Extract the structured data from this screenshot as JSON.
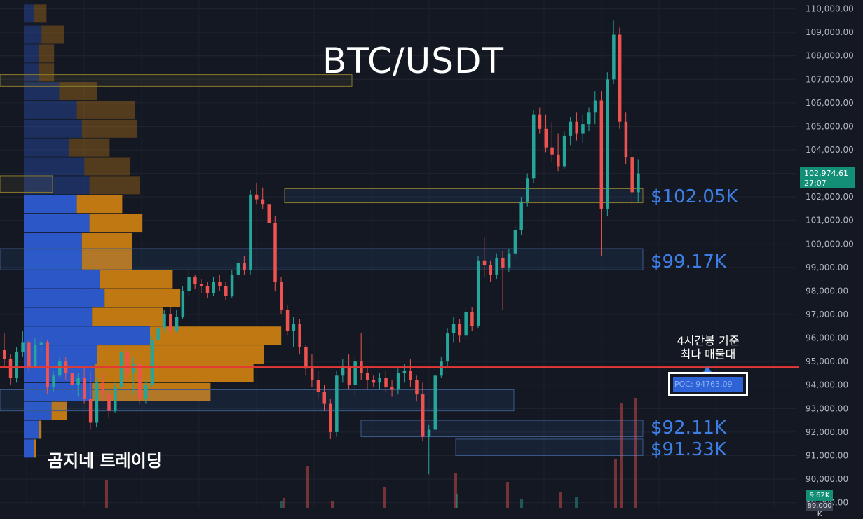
{
  "title": "BTC/USDT",
  "watermark": "곰지네 트레이딩",
  "chart_data": {
    "type": "candlestick",
    "title": "BTC/USDT",
    "y_axis": {
      "ticks": [
        "110,000.00",
        "109,000.00",
        "108,000.00",
        "107,000.00",
        "106,000.00",
        "105,000.00",
        "104,000.00",
        "103,000.00",
        "102,000.00",
        "101,000.00",
        "100,000.00",
        "99,000.00",
        "98,000.00",
        "97,000.00",
        "96,000.00",
        "95,000.00",
        "94,000.00",
        "93,000.00",
        "92,000.00",
        "91,000.00",
        "90,000.00",
        "89,000.00"
      ],
      "range": [
        89000,
        110000
      ]
    },
    "candles": [
      [
        95500,
        96200,
        94700,
        95100
      ],
      [
        95100,
        95300,
        94000,
        94300
      ],
      [
        94300,
        95600,
        94100,
        95400
      ],
      [
        95400,
        96300,
        95200,
        95800
      ],
      [
        95800,
        95900,
        94600,
        94800
      ],
      [
        94800,
        96000,
        94700,
        95700
      ],
      [
        95700,
        96200,
        95400,
        95800
      ],
      [
        95800,
        95900,
        93600,
        93900
      ],
      [
        93900,
        94600,
        93700,
        94400
      ],
      [
        94400,
        95200,
        94300,
        95000
      ],
      [
        95000,
        95200,
        94200,
        94500
      ],
      [
        94500,
        94800,
        93600,
        94000
      ],
      [
        94000,
        94500,
        93500,
        94300
      ],
      [
        94300,
        94700,
        93200,
        93400
      ],
      [
        93400,
        94600,
        92100,
        92400
      ],
      [
        92400,
        94300,
        92200,
        94100
      ],
      [
        94100,
        94500,
        93300,
        93600
      ],
      [
        93600,
        93800,
        92600,
        92900
      ],
      [
        92900,
        94100,
        92800,
        93900
      ],
      [
        93900,
        95600,
        93700,
        95400
      ],
      [
        95400,
        95500,
        94200,
        94500
      ],
      [
        94500,
        95200,
        93600,
        94900
      ],
      [
        94900,
        95100,
        93200,
        93400
      ],
      [
        93400,
        94200,
        93200,
        94000
      ],
      [
        94000,
        96100,
        93900,
        95900
      ],
      [
        95900,
        96700,
        95700,
        96400
      ],
      [
        96400,
        97200,
        96200,
        97000
      ],
      [
        97000,
        97300,
        96100,
        96300
      ],
      [
        96300,
        97200,
        96200,
        96900
      ],
      [
        96900,
        98200,
        96800,
        98000
      ],
      [
        98000,
        98900,
        97800,
        98600
      ],
      [
        98600,
        98700,
        98100,
        98300
      ],
      [
        98300,
        98500,
        97900,
        98200
      ],
      [
        98200,
        98400,
        97700,
        97900
      ],
      [
        97900,
        98600,
        97800,
        98400
      ],
      [
        98400,
        98700,
        98000,
        98200
      ],
      [
        98200,
        98400,
        97600,
        97800
      ],
      [
        97800,
        98900,
        97700,
        98700
      ],
      [
        98700,
        99400,
        98500,
        99200
      ],
      [
        99200,
        99500,
        98700,
        98900
      ],
      [
        98900,
        102300,
        98700,
        102100
      ],
      [
        102100,
        102600,
        101700,
        101900
      ],
      [
        101900,
        102400,
        101500,
        101700
      ],
      [
        101700,
        102000,
        100600,
        100900
      ],
      [
        100900,
        101200,
        98000,
        98400
      ],
      [
        98400,
        98600,
        97000,
        97200
      ],
      [
        97200,
        97400,
        96100,
        96300
      ],
      [
        96300,
        96900,
        95600,
        96600
      ],
      [
        96600,
        96800,
        95300,
        95600
      ],
      [
        95600,
        95700,
        94400,
        94700
      ],
      [
        94700,
        95300,
        93900,
        94200
      ],
      [
        94200,
        94600,
        93400,
        93700
      ],
      [
        93700,
        94000,
        92900,
        93200
      ],
      [
        93200,
        93400,
        91700,
        92000
      ],
      [
        92000,
        94600,
        91800,
        94400
      ],
      [
        94400,
        95100,
        94100,
        94800
      ],
      [
        94800,
        95300,
        93800,
        94000
      ],
      [
        94000,
        95200,
        93500,
        95000
      ],
      [
        95000,
        96200,
        94200,
        94500
      ],
      [
        94500,
        94800,
        93800,
        94200
      ],
      [
        94200,
        94400,
        93900,
        94100
      ],
      [
        94100,
        94500,
        93800,
        94300
      ],
      [
        94300,
        94600,
        93700,
        93900
      ],
      [
        93900,
        94200,
        93500,
        93800
      ],
      [
        93800,
        94700,
        93600,
        94500
      ],
      [
        94500,
        94900,
        94100,
        94600
      ],
      [
        94600,
        95100,
        93900,
        94200
      ],
      [
        94200,
        94400,
        93300,
        93600
      ],
      [
        93600,
        94100,
        91600,
        91800
      ],
      [
        91800,
        92300,
        90200,
        92100
      ],
      [
        92100,
        94500,
        92000,
        94400
      ],
      [
        94400,
        95200,
        94300,
        95000
      ],
      [
        95000,
        96400,
        94800,
        96200
      ],
      [
        96200,
        96900,
        95800,
        96600
      ],
      [
        96600,
        96800,
        95800,
        96100
      ],
      [
        96100,
        97300,
        95900,
        97100
      ],
      [
        97100,
        97300,
        96300,
        96500
      ],
      [
        96500,
        99500,
        96400,
        99300
      ],
      [
        99300,
        100300,
        98600,
        99100
      ],
      [
        99100,
        99300,
        98400,
        98700
      ],
      [
        98700,
        99600,
        98500,
        99400
      ],
      [
        99400,
        99700,
        97200,
        99000
      ],
      [
        99000,
        99800,
        98800,
        99600
      ],
      [
        99600,
        100800,
        99400,
        100600
      ],
      [
        100600,
        102000,
        100400,
        101800
      ],
      [
        101800,
        103000,
        101600,
        102800
      ],
      [
        102800,
        105700,
        102600,
        105500
      ],
      [
        105500,
        105800,
        104700,
        104900
      ],
      [
        104900,
        105500,
        103900,
        104100
      ],
      [
        104100,
        105200,
        103500,
        103800
      ],
      [
        103800,
        104700,
        103100,
        103300
      ],
      [
        103300,
        104800,
        103200,
        104600
      ],
      [
        104600,
        105400,
        104200,
        105200
      ],
      [
        105200,
        105600,
        104400,
        104700
      ],
      [
        104700,
        105500,
        104300,
        105100
      ],
      [
        105100,
        105800,
        104800,
        105600
      ],
      [
        105600,
        106500,
        105100,
        106100
      ],
      [
        106100,
        106500,
        99500,
        101500
      ],
      [
        101500,
        107300,
        101200,
        107000
      ],
      [
        107000,
        109500,
        106800,
        108900
      ],
      [
        108900,
        109200,
        104900,
        105200
      ],
      [
        105200,
        105600,
        103400,
        103700
      ],
      [
        103700,
        104100,
        101600,
        102200
      ],
      [
        102200,
        103600,
        101800,
        103000
      ]
    ],
    "volume_profile": {
      "note": "Visible-range volume by price; left portion blue (buy), right orange (sell)",
      "rows": [
        [
          109800,
          0.4,
          0.5
        ],
        [
          108900,
          0.7,
          0.9
        ],
        [
          108100,
          0.6,
          0.6
        ],
        [
          107300,
          0.6,
          0.6
        ],
        [
          106500,
          1.4,
          1.5
        ],
        [
          105700,
          2.1,
          2.3
        ],
        [
          104900,
          2.3,
          2.2
        ],
        [
          104100,
          1.8,
          1.6
        ],
        [
          103300,
          2.4,
          1.8
        ],
        [
          102500,
          2.6,
          2.0
        ],
        [
          101700,
          2.1,
          1.8
        ],
        [
          100900,
          2.6,
          2.1
        ],
        [
          100100,
          2.3,
          2.0
        ],
        [
          99300,
          2.3,
          2.0
        ],
        [
          98500,
          3.0,
          2.9
        ],
        [
          97700,
          3.2,
          3.0
        ],
        [
          96900,
          2.7,
          2.8
        ],
        [
          96100,
          5.0,
          5.2
        ],
        [
          95300,
          2.9,
          6.6
        ],
        [
          94500,
          2.8,
          6.3
        ],
        [
          93700,
          2.7,
          4.7
        ],
        [
          92900,
          1.1,
          0.6
        ],
        [
          92100,
          0.6,
          0.1
        ],
        [
          91300,
          0.4,
          0.1
        ]
      ]
    },
    "levels": [
      "$102.05K",
      "$99.17K",
      "$92.11K",
      "$91.33K"
    ],
    "poc": {
      "label": "POC: 94763.09",
      "value": 94763.09
    },
    "annotation": [
      "4시간봉 기준",
      "최다 매물대"
    ],
    "current_price": {
      "price": "102,974.61",
      "countdown": "27:07",
      "value": 102974.61
    },
    "volume_axis": {
      "label1": "9.62K",
      "label2": "89,000 K"
    },
    "colors": {
      "up": "#26a69a",
      "down": "#ef5350",
      "bg": "#141822",
      "buy": "#2c5bd1",
      "sell": "#c97d13",
      "poc": "#e53935",
      "level": "#3d7fe6"
    }
  }
}
